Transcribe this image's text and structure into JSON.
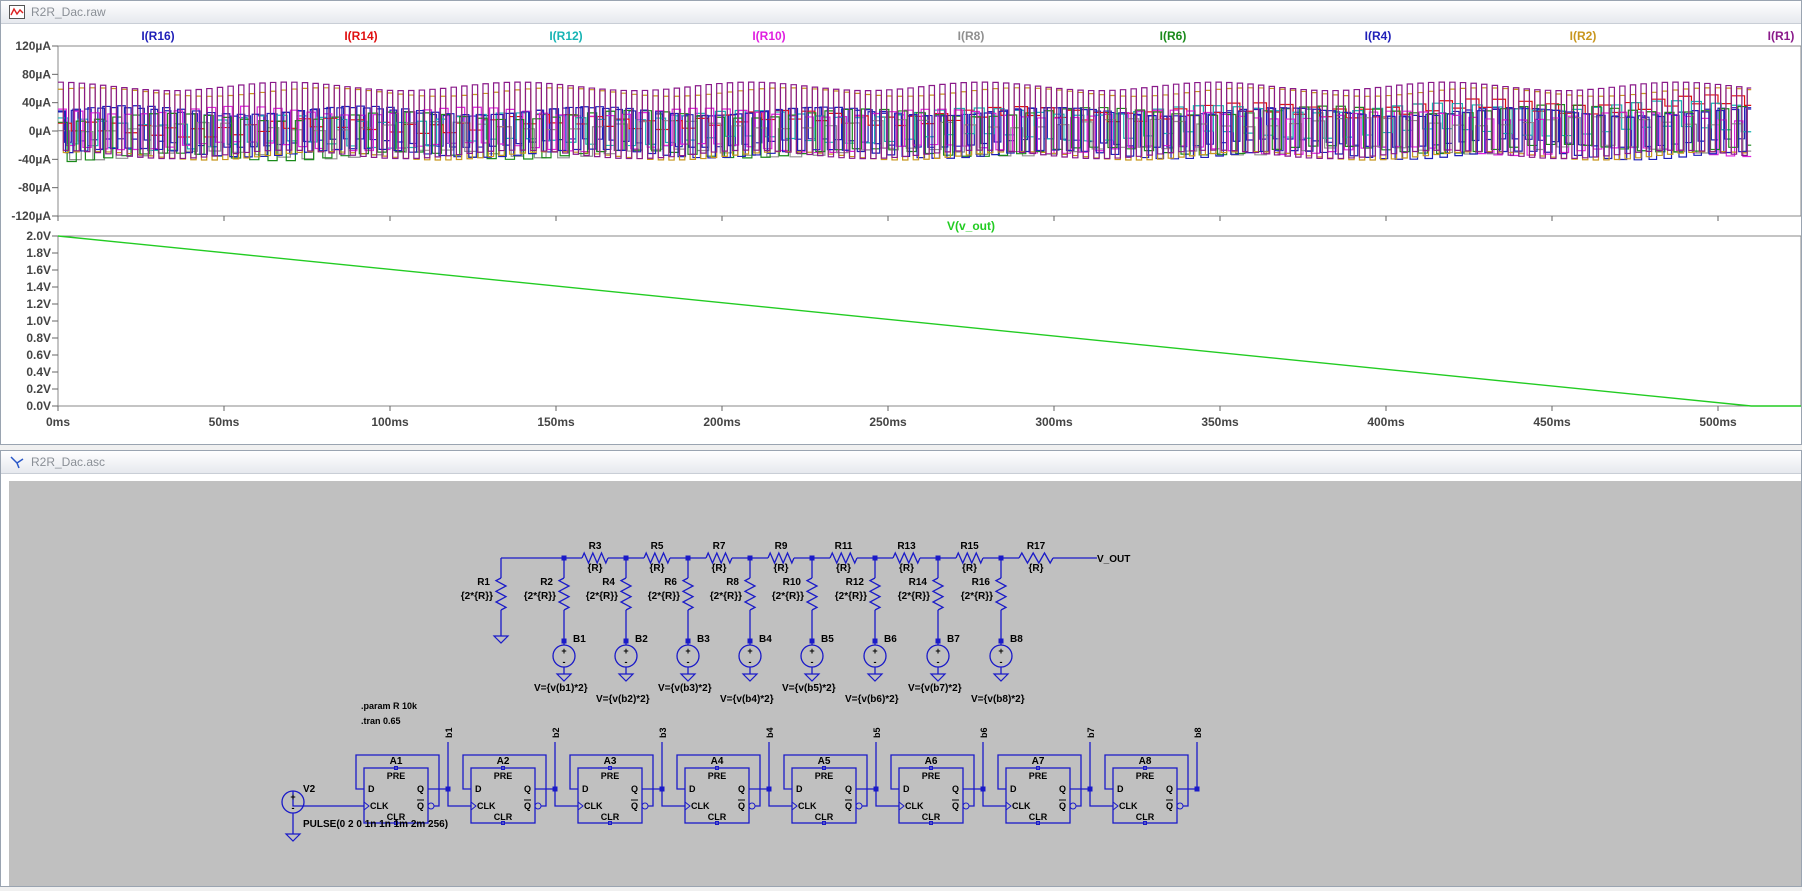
{
  "plot_window": {
    "title": "R2R_Dac.raw",
    "icon": "waveform-icon",
    "top_pane": {
      "legend": [
        {
          "label": "I(R16)",
          "color": "#1f1fb8"
        },
        {
          "label": "I(R14)",
          "color": "#e01010"
        },
        {
          "label": "I(R12)",
          "color": "#18b4b4"
        },
        {
          "label": "I(R10)",
          "color": "#e020e0"
        },
        {
          "label": "I(R8)",
          "color": "#909090"
        },
        {
          "label": "I(R6)",
          "color": "#1a8a1a"
        },
        {
          "label": "I(R4)",
          "color": "#1f1fb8"
        },
        {
          "label": "I(R2)",
          "color": "#c8961e"
        },
        {
          "label": "I(R1)",
          "color": "#8a1a8a"
        }
      ],
      "y_ticks": [
        "120µA",
        "80µA",
        "40µA",
        "0µA",
        "-40µA",
        "-80µA",
        "-120µA"
      ]
    },
    "bottom_pane": {
      "trace_label": "V(v_out)",
      "trace_color": "#22cc22",
      "y_ticks": [
        "2.0V",
        "1.8V",
        "1.6V",
        "1.4V",
        "1.2V",
        "1.0V",
        "0.8V",
        "0.6V",
        "0.4V",
        "0.2V",
        "0.0V"
      ]
    },
    "x_ticks": [
      "0ms",
      "50ms",
      "100ms",
      "150ms",
      "200ms",
      "250ms",
      "300ms",
      "350ms",
      "400ms",
      "450ms",
      "500ms"
    ]
  },
  "chart_data": [
    {
      "type": "line",
      "title": "",
      "xlabel": "",
      "ylabel": "",
      "xlim": [
        0,
        525
      ],
      "ylim": [
        -120,
        120
      ],
      "y_unit": "µA",
      "series": [
        {
          "name": "I(R16)",
          "color": "#1f1fb8"
        },
        {
          "name": "I(R14)",
          "color": "#e01010"
        },
        {
          "name": "I(R12)",
          "color": "#18b4b4"
        },
        {
          "name": "I(R10)",
          "color": "#e020e0"
        },
        {
          "name": "I(R8)",
          "color": "#909090"
        },
        {
          "name": "I(R6)",
          "color": "#1a8a1a"
        },
        {
          "name": "I(R4)",
          "color": "#1f1fb8"
        },
        {
          "name": "I(R2)",
          "color": "#c8961e"
        },
        {
          "name": "I(R1)",
          "color": "#8a1a8a"
        }
      ]
    },
    {
      "type": "line",
      "title": "",
      "xlabel": "",
      "ylabel": "",
      "xlim": [
        0,
        525
      ],
      "ylim": [
        0,
        2.0
      ],
      "series": [
        {
          "name": "V(v_out)",
          "color": "#22cc22",
          "x": [
            0,
            510,
            525
          ],
          "y": [
            2.0,
            0.0,
            0.0
          ]
        }
      ]
    }
  ],
  "schematic_window": {
    "title": "R2R_Dac.asc",
    "icon": "schematic-icon",
    "resistors_top": [
      {
        "name": "R3",
        "value": "{R}"
      },
      {
        "name": "R5",
        "value": "{R}"
      },
      {
        "name": "R7",
        "value": "{R}"
      },
      {
        "name": "R9",
        "value": "{R}"
      },
      {
        "name": "R11",
        "value": "{R}"
      },
      {
        "name": "R13",
        "value": "{R}"
      },
      {
        "name": "R15",
        "value": "{R}"
      },
      {
        "name": "R17",
        "value": "{R}"
      }
    ],
    "resistors_shunt": [
      {
        "name": "R1",
        "value": "{2*{R}}"
      },
      {
        "name": "R2",
        "value": "{2*{R}}"
      },
      {
        "name": "R4",
        "value": "{2*{R}}"
      },
      {
        "name": "R6",
        "value": "{2*{R}}"
      },
      {
        "name": "R8",
        "value": "{2*{R}}"
      },
      {
        "name": "R10",
        "value": "{2*{R}}"
      },
      {
        "name": "R12",
        "value": "{2*{R}}"
      },
      {
        "name": "R14",
        "value": "{2*{R}}"
      },
      {
        "name": "R16",
        "value": "{2*{R}}"
      }
    ],
    "output_label": "V_OUT",
    "sources": [
      {
        "name": "B1",
        "value": "V={v(b1)*2}"
      },
      {
        "name": "B2",
        "value": "V={v(b2)*2}"
      },
      {
        "name": "B3",
        "value": "V={v(b3)*2}"
      },
      {
        "name": "B4",
        "value": "V={v(b4)*2}"
      },
      {
        "name": "B5",
        "value": "V={v(b5)*2}"
      },
      {
        "name": "B6",
        "value": "V={v(b6)*2}"
      },
      {
        "name": "B7",
        "value": "V={v(b7)*2}"
      },
      {
        "name": "B8",
        "value": "V={v(b8)*2}"
      }
    ],
    "directives": [
      ".param R 10k",
      ".tran 0.65"
    ],
    "flipflops": [
      {
        "name": "A1",
        "net": "b1"
      },
      {
        "name": "A2",
        "net": "b2"
      },
      {
        "name": "A3",
        "net": "b3"
      },
      {
        "name": "A4",
        "net": "b4"
      },
      {
        "name": "A5",
        "net": "b5"
      },
      {
        "name": "A6",
        "net": "b6"
      },
      {
        "name": "A7",
        "net": "b7"
      },
      {
        "name": "A8",
        "net": "b8"
      }
    ],
    "ff_pins": {
      "pre": "PRE",
      "d": "D",
      "q": "Q",
      "clk": "CLK",
      "clr": "CLR",
      "qbar": "Q"
    },
    "clock_source": {
      "name": "V2",
      "value": "PULSE(0 2 0 1n 1n 1m 2m 256)"
    }
  }
}
